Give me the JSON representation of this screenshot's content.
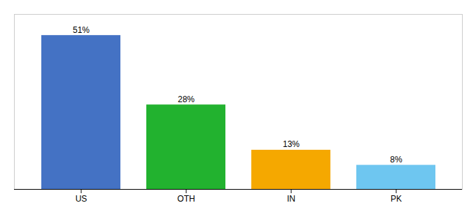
{
  "chart_data": {
    "type": "bar",
    "categories": [
      "US",
      "OTH",
      "IN",
      "PK"
    ],
    "values": [
      51,
      28,
      13,
      8
    ],
    "value_labels": [
      "51%",
      "28%",
      "13%",
      "8%"
    ],
    "colors": [
      "#4472c4",
      "#22b22f",
      "#f5a800",
      "#6ec6f0"
    ],
    "ylim": [
      0,
      58
    ],
    "data_labels": true,
    "tick_labels": "x"
  }
}
